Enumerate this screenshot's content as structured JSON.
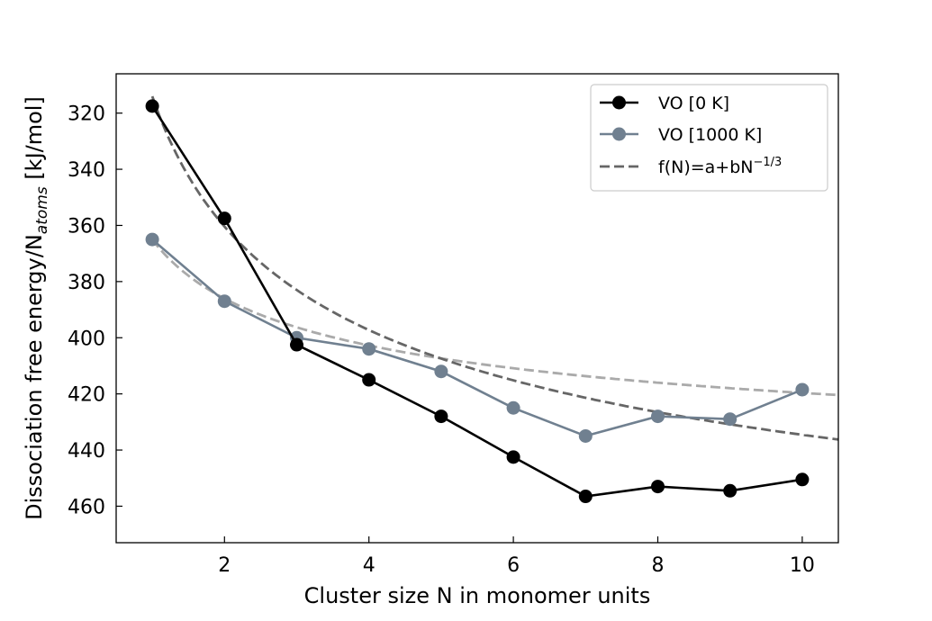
{
  "chart_data": {
    "type": "line",
    "xlabel": "Cluster size N in monomer units",
    "ylabel_main": "Dissociation free energy/N",
    "ylabel_sub": "atoms",
    "ylabel_unit": " [kJ/mol]",
    "xlim": [
      0.5,
      10.5
    ],
    "ylim": [
      473,
      306
    ],
    "y_inverted": true,
    "x_ticks": [
      2,
      4,
      6,
      8,
      10
    ],
    "y_ticks": [
      320,
      340,
      360,
      380,
      400,
      420,
      440,
      460
    ],
    "grid": false,
    "legend_position": "top-right",
    "series": [
      {
        "name": "VO [0 K]",
        "kind": "markers-line",
        "color": "#000000",
        "x": [
          1,
          2,
          3,
          4,
          5,
          6,
          7,
          8,
          9,
          10
        ],
        "y": [
          317.5,
          357.5,
          402.5,
          415,
          428,
          442.5,
          456.5,
          453,
          454.5,
          450.5
        ]
      },
      {
        "name": "VO [1000 K]",
        "kind": "markers-line",
        "color": "#708090",
        "x": [
          1,
          2,
          3,
          4,
          5,
          6,
          7,
          8,
          9,
          10
        ],
        "y": [
          365,
          387,
          400,
          404,
          412,
          425,
          435,
          428,
          429,
          418.5
        ]
      },
      {
        "name": "f(N)=a+bN",
        "name_sup": "−1/3",
        "kind": "fit",
        "target": "VO [0 K]",
        "color": "#666666",
        "a": 539,
        "b": -225
      },
      {
        "name": "fit VO [1000 K]",
        "kind": "fit",
        "target": "VO [1000 K]",
        "in_legend": false,
        "color": "#aaaaaa",
        "a": 467,
        "b": -102
      }
    ]
  }
}
